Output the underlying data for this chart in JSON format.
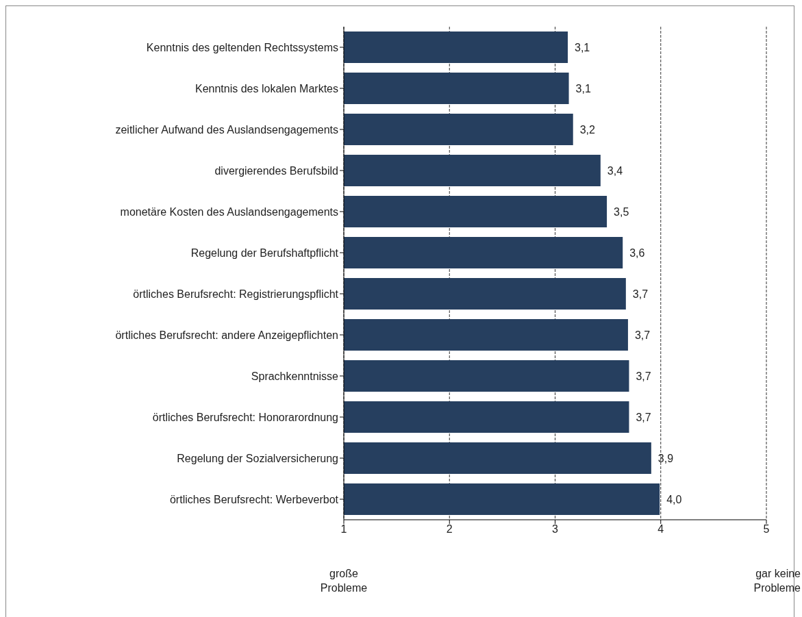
{
  "chart_data": {
    "type": "bar",
    "orientation": "horizontal",
    "categories": [
      "Kenntnis des geltenden Rechtssystems",
      "Kenntnis des lokalen Marktes",
      "zeitlicher Aufwand des Auslandsengagements",
      "divergierendes Berufsbild",
      "monetäre Kosten des Auslandsengagements",
      "Regelung der Berufshaftpflicht",
      "örtliches Berufsrecht: Registrierungspflicht",
      "örtliches Berufsrecht: andere Anzeigepflichten",
      "Sprachkenntnisse",
      "örtliches Berufsrecht: Honorarordnung",
      "Regelung der Sozialversicherung",
      "örtliches Berufsrecht: Werbeverbot"
    ],
    "values": [
      3.12,
      3.13,
      3.17,
      3.43,
      3.49,
      3.64,
      3.67,
      3.69,
      3.7,
      3.7,
      3.91,
      3.99
    ],
    "value_labels": [
      "3,1",
      "3,1",
      "3,2",
      "3,4",
      "3,5",
      "3,6",
      "3,7",
      "3,7",
      "3,7",
      "3,7",
      "3,9",
      "4,0"
    ],
    "color": "#263f5f",
    "xlim": [
      1,
      5
    ],
    "xticks": [
      1,
      2,
      3,
      4,
      5
    ],
    "grid": "x",
    "annotations": [
      "große\nProbleme",
      "gar keine\nProbleme"
    ]
  }
}
